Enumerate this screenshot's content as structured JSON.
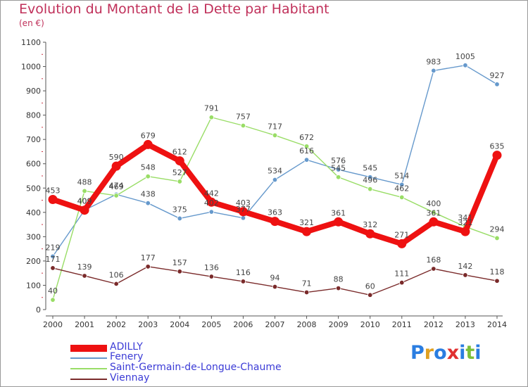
{
  "title": "Evolution du Montant de la Dette par Habitant",
  "subtitle": "(en €)",
  "logo": {
    "text": "Proxiti",
    "letters": [
      "P",
      "r",
      "o",
      "x",
      "i",
      "t",
      "i"
    ],
    "colors": [
      "#2a7de1",
      "#e0a020",
      "#2a7de1",
      "#e03030",
      "#2a7de1",
      "#7bbf3a",
      "#2a7de1"
    ]
  },
  "chart_data": {
    "type": "line",
    "title": "Evolution du Montant de la Dette par Habitant",
    "ylabel": "(en €)",
    "xlabel": "",
    "x": [
      2000,
      2001,
      2002,
      2003,
      2004,
      2005,
      2006,
      2007,
      2008,
      2009,
      2010,
      2011,
      2012,
      2013,
      2014
    ],
    "ylim": [
      0,
      1100
    ],
    "yticks": [
      0,
      100,
      200,
      300,
      400,
      500,
      600,
      700,
      800,
      900,
      1000,
      1100
    ],
    "grid": false,
    "legend_position": "bottom-left",
    "series": [
      {
        "name": "ADILLY",
        "color": "#ee1111",
        "values": [
          453,
          409,
          590,
          679,
          612,
          442,
          403,
          363,
          321,
          361,
          312,
          271,
          361,
          321,
          635
        ]
      },
      {
        "name": "Fenery",
        "color": "#6699cc",
        "values": [
          219,
          409,
          474,
          438,
          375,
          402,
          377,
          534,
          616,
          576,
          545,
          514,
          983,
          1005,
          927
        ]
      },
      {
        "name": "Saint-Germain-de-Longue-Chaume",
        "color": "#99dd66",
        "values": [
          40,
          488,
          469,
          548,
          527,
          791,
          757,
          717,
          672,
          545,
          496,
          462,
          400,
          341,
          294
        ]
      },
      {
        "name": "Viennay",
        "color": "#7a2a2a",
        "values": [
          171,
          139,
          106,
          177,
          157,
          136,
          116,
          94,
          71,
          88,
          60,
          111,
          168,
          142,
          118
        ]
      }
    ]
  }
}
